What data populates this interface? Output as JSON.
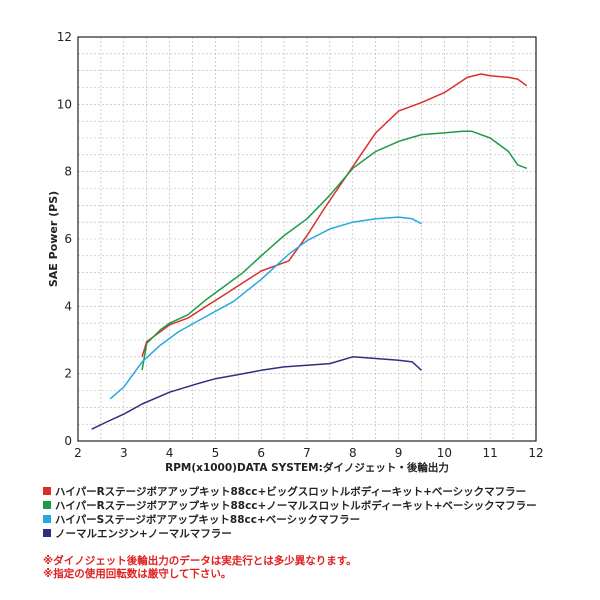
{
  "chart_data": {
    "type": "line",
    "xlabel": "RPM(x1000)DATA SYSTEM:ダイノジェット・後輪出力",
    "ylabel": "SAE Power (PS)",
    "xlim": [
      2,
      12
    ],
    "ylim": [
      0,
      12
    ],
    "x_ticks": [
      "2",
      "3",
      "4",
      "5",
      "6",
      "7",
      "8",
      "9",
      "10",
      "11",
      "12"
    ],
    "y_ticks": [
      "0",
      "2",
      "4",
      "6",
      "8",
      "10",
      "12"
    ],
    "grid": true,
    "series": [
      {
        "name": "ハイパーRステージボアアップキット88cc+ビッグスロットルボディーキット+ベーシックマフラー",
        "color": "#d9302b",
        "x": [
          3.4,
          3.5,
          3.8,
          4.0,
          4.4,
          4.8,
          5.2,
          5.6,
          6.0,
          6.6,
          7.0,
          7.4,
          8.0,
          8.5,
          9.0,
          9.5,
          10.0,
          10.5,
          10.8,
          11.0,
          11.4,
          11.6,
          11.8
        ],
        "y": [
          2.5,
          2.95,
          3.25,
          3.45,
          3.65,
          4.0,
          4.35,
          4.7,
          5.05,
          5.35,
          6.1,
          6.95,
          8.15,
          9.15,
          9.8,
          10.05,
          10.35,
          10.8,
          10.9,
          10.85,
          10.8,
          10.75,
          10.55
        ]
      },
      {
        "name": "ハイパーRステージボアアップキット88cc+ノーマルスロットルボディーキット+ベーシックマフラー",
        "color": "#1e9a48",
        "x": [
          3.4,
          3.5,
          3.8,
          4.0,
          4.4,
          4.8,
          5.2,
          5.6,
          6.0,
          6.5,
          7.0,
          7.5,
          8.0,
          8.5,
          9.0,
          9.5,
          10.0,
          10.4,
          10.6,
          11.0,
          11.4,
          11.6,
          11.8
        ],
        "y": [
          2.1,
          2.9,
          3.3,
          3.5,
          3.75,
          4.2,
          4.6,
          5.0,
          5.5,
          6.1,
          6.6,
          7.3,
          8.1,
          8.6,
          8.9,
          9.1,
          9.15,
          9.2,
          9.2,
          9.0,
          8.6,
          8.2,
          8.1
        ]
      },
      {
        "name": "ハイパーSステージボアアップキット88cc+ベーシックマフラー",
        "color": "#27a9df",
        "x": [
          2.7,
          3.0,
          3.4,
          3.8,
          4.2,
          4.8,
          5.4,
          6.0,
          6.6,
          7.0,
          7.5,
          8.0,
          8.5,
          9.0,
          9.3,
          9.5
        ],
        "y": [
          1.25,
          1.6,
          2.35,
          2.85,
          3.25,
          3.7,
          4.15,
          4.8,
          5.55,
          5.95,
          6.3,
          6.5,
          6.6,
          6.65,
          6.6,
          6.45
        ]
      },
      {
        "name": "ノーマルエンジン+ノーマルマフラー",
        "color": "#2d2f7f",
        "x": [
          2.3,
          2.6,
          3.0,
          3.4,
          4.0,
          4.6,
          5.0,
          5.6,
          6.0,
          6.5,
          7.0,
          7.5,
          8.0,
          8.5,
          9.0,
          9.3,
          9.5
        ],
        "y": [
          0.35,
          0.55,
          0.8,
          1.1,
          1.45,
          1.7,
          1.85,
          2.0,
          2.1,
          2.2,
          2.25,
          2.3,
          2.5,
          2.45,
          2.4,
          2.35,
          2.1
        ]
      }
    ],
    "notes": [
      "※ダイノジェット後輪出力のデータは実走行とは多少異なります。",
      "※指定の使用回転数は厳守して下さい。"
    ],
    "note_color": "#e02020"
  }
}
